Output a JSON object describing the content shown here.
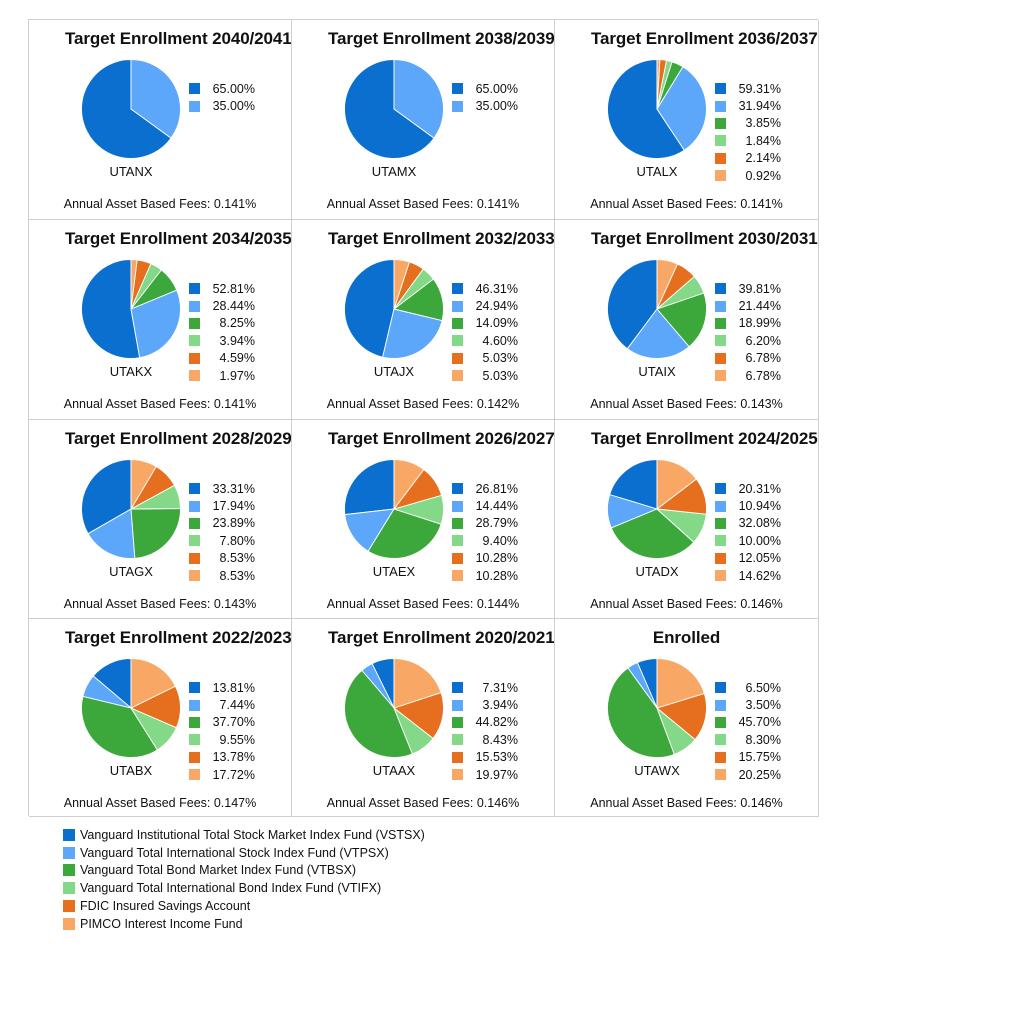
{
  "funds": [
    {
      "name": "Vanguard Institutional Total Stock Market Index Fund (VSTSX)",
      "color": "#0a6fce"
    },
    {
      "name": "Vanguard Total International Stock Index Fund (VTPSX)",
      "color": "#5da7fb"
    },
    {
      "name": "Vanguard Total Bond Market Index Fund (VTBSX)",
      "color": "#3ca83c"
    },
    {
      "name": "Vanguard Total International Bond Index Fund (VTIFX)",
      "color": "#84d988"
    },
    {
      "name": "FDIC Insured Savings Account",
      "color": "#e56f1e"
    },
    {
      "name": "PIMCO Interest Income Fund",
      "color": "#f9a765"
    }
  ],
  "chart_data": [
    {
      "type": "pie",
      "title": "Target Enrollment 2040/2041",
      "ticker": "UTANX",
      "fees": "Annual Asset Based Fees: 0.141%",
      "values": [
        65.0,
        35.0
      ],
      "labels": [
        "65.00%",
        "35.00%"
      ]
    },
    {
      "type": "pie",
      "title": "Target Enrollment 2038/2039",
      "ticker": "UTAMX",
      "fees": "Annual Asset Based Fees: 0.141%",
      "values": [
        65.0,
        35.0
      ],
      "labels": [
        "65.00%",
        "35.00%"
      ]
    },
    {
      "type": "pie",
      "title": "Target Enrollment 2036/2037",
      "ticker": "UTALX",
      "fees": "Annual Asset Based Fees: 0.141%",
      "values": [
        59.31,
        31.94,
        3.85,
        1.84,
        2.14,
        0.92
      ],
      "labels": [
        "59.31%",
        "31.94%",
        "3.85%",
        "1.84%",
        "2.14%",
        "0.92%"
      ]
    },
    {
      "type": "pie",
      "title": "Target Enrollment 2034/2035",
      "ticker": "UTAKX",
      "fees": "Annual Asset Based Fees: 0.141%",
      "values": [
        52.81,
        28.44,
        8.25,
        3.94,
        4.59,
        1.97
      ],
      "labels": [
        "52.81%",
        "28.44%",
        "8.25%",
        "3.94%",
        "4.59%",
        "1.97%"
      ]
    },
    {
      "type": "pie",
      "title": "Target Enrollment 2032/2033",
      "ticker": "UTAJX",
      "fees": "Annual Asset Based Fees: 0.142%",
      "values": [
        46.31,
        24.94,
        14.09,
        4.6,
        5.03,
        5.03
      ],
      "labels": [
        "46.31%",
        "24.94%",
        "14.09%",
        "4.60%",
        "5.03%",
        "5.03%"
      ]
    },
    {
      "type": "pie",
      "title": "Target Enrollment 2030/2031",
      "ticker": "UTAIX",
      "fees": "Annual Asset Based Fees: 0.143%",
      "values": [
        39.81,
        21.44,
        18.99,
        6.2,
        6.78,
        6.78
      ],
      "labels": [
        "39.81%",
        "21.44%",
        "18.99%",
        "6.20%",
        "6.78%",
        "6.78%"
      ]
    },
    {
      "type": "pie",
      "title": "Target Enrollment 2028/2029",
      "ticker": "UTAGX",
      "fees": "Annual Asset Based Fees: 0.143%",
      "values": [
        33.31,
        17.94,
        23.89,
        7.8,
        8.53,
        8.53
      ],
      "labels": [
        "33.31%",
        "17.94%",
        "23.89%",
        "7.80%",
        "8.53%",
        "8.53%"
      ]
    },
    {
      "type": "pie",
      "title": "Target Enrollment 2026/2027",
      "ticker": "UTAEX",
      "fees": "Annual Asset Based Fees: 0.144%",
      "values": [
        26.81,
        14.44,
        28.79,
        9.4,
        10.28,
        10.28
      ],
      "labels": [
        "26.81%",
        "14.44%",
        "28.79%",
        "9.40%",
        "10.28%",
        "10.28%"
      ]
    },
    {
      "type": "pie",
      "title": "Target Enrollment 2024/2025",
      "ticker": "UTADX",
      "fees": "Annual Asset Based Fees: 0.146%",
      "values": [
        20.31,
        10.94,
        32.08,
        10.0,
        12.05,
        14.62
      ],
      "labels": [
        "20.31%",
        "10.94%",
        "32.08%",
        "10.00%",
        "12.05%",
        "14.62%"
      ]
    },
    {
      "type": "pie",
      "title": "Target Enrollment 2022/2023",
      "ticker": "UTABX",
      "fees": "Annual Asset Based Fees: 0.147%",
      "values": [
        13.81,
        7.44,
        37.7,
        9.55,
        13.78,
        17.72
      ],
      "labels": [
        "13.81%",
        "7.44%",
        "37.70%",
        "9.55%",
        "13.78%",
        "17.72%"
      ]
    },
    {
      "type": "pie",
      "title": "Target Enrollment 2020/2021",
      "ticker": "UTAAX",
      "fees": "Annual Asset Based Fees: 0.146%",
      "values": [
        7.31,
        3.94,
        44.82,
        8.43,
        15.53,
        19.97
      ],
      "labels": [
        "7.31%",
        "3.94%",
        "44.82%",
        "8.43%",
        "15.53%",
        "19.97%"
      ]
    },
    {
      "type": "pie",
      "title": "Enrolled",
      "ticker": "UTAWX",
      "fees": "Annual Asset Based Fees: 0.146%",
      "values": [
        6.5,
        3.5,
        45.7,
        8.3,
        15.75,
        20.25
      ],
      "labels": [
        "6.50%",
        "3.50%",
        "45.70%",
        "8.30%",
        "15.75%",
        "20.25%"
      ]
    }
  ]
}
